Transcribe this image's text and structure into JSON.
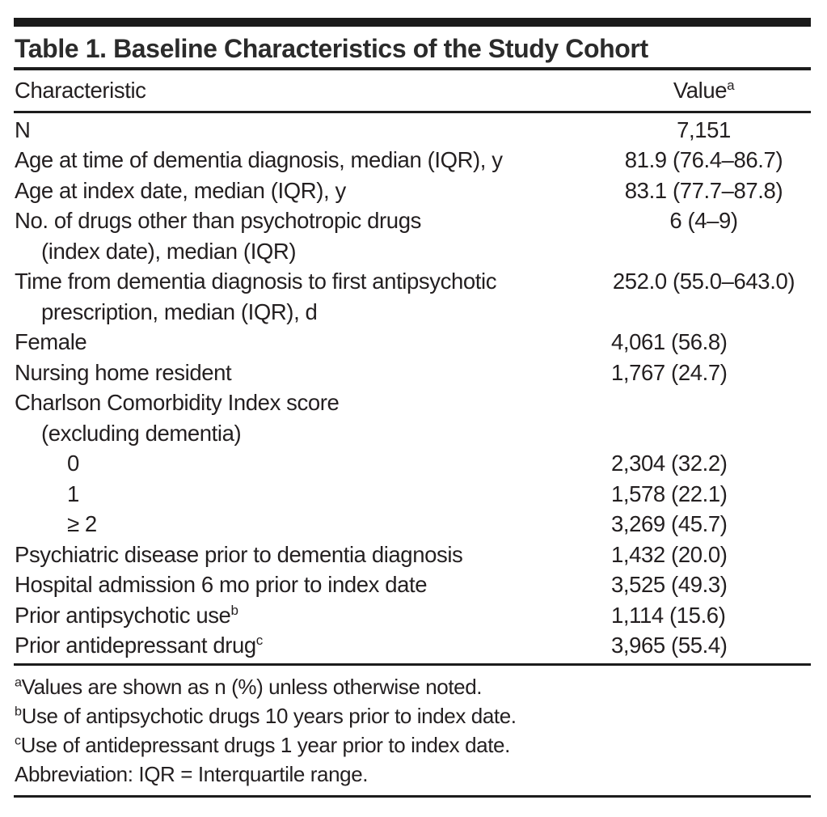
{
  "table": {
    "title": "Table 1. Baseline Characteristics of the Study Cohort",
    "columns": {
      "characteristic": "Characteristic",
      "value": "Value",
      "value_sup": "a"
    },
    "rows": [
      {
        "label": "N",
        "value": "7,151",
        "align": "center"
      },
      {
        "label": "Age at time of dementia diagnosis, median (IQR), y",
        "value": "81.9 (76.4–86.7)",
        "align": "center"
      },
      {
        "label": "Age at index date, median (IQR), y",
        "value": "83.1 (77.7–87.8)",
        "align": "center"
      },
      {
        "label": "No. of drugs other than psychotropic drugs",
        "label2": "(index date), median (IQR)",
        "value": "6 (4–9)",
        "align": "center"
      },
      {
        "label": "Time from dementia diagnosis to first antipsychotic",
        "label2": "prescription, median (IQR), d",
        "value": "252.0 (55.0–643.0)",
        "align": "center"
      },
      {
        "label": "Female",
        "value": "4,061 (56.8)",
        "align": "left"
      },
      {
        "label": "Nursing home resident",
        "value": "1,767 (24.7)",
        "align": "left"
      },
      {
        "label": "Charlson Comorbidity Index score",
        "label2": "(excluding dementia)",
        "value": "",
        "align": "left"
      },
      {
        "label": "0",
        "value": "2,304 (32.2)",
        "align": "left",
        "indent": 1
      },
      {
        "label": "1",
        "value": "1,578 (22.1)",
        "align": "left",
        "indent": 1
      },
      {
        "label": "≥ 2",
        "value": "3,269 (45.7)",
        "align": "left",
        "indent": 1
      },
      {
        "label": "Psychiatric disease prior to dementia diagnosis",
        "value": "1,432 (20.0)",
        "align": "left"
      },
      {
        "label": "Hospital admission 6 mo prior to index date",
        "value": "3,525 (49.3)",
        "align": "left"
      },
      {
        "label": "Prior antipsychotic use",
        "label_sup": "b",
        "value": "1,114 (15.6)",
        "align": "left"
      },
      {
        "label": "Prior antidepressant drug",
        "label_sup": "c",
        "value": "3,965 (55.4)",
        "align": "left"
      }
    ],
    "footnotes": [
      {
        "sup": "a",
        "text": "Values are shown as n (%) unless otherwise noted."
      },
      {
        "sup": "b",
        "text": "Use of antipsychotic drugs 10 years prior to index date."
      },
      {
        "sup": "c",
        "text": "Use of antidepressant drugs 1 year prior to index date."
      },
      {
        "sup": "",
        "text": "Abbreviation: IQR = Interquartile range."
      }
    ],
    "colors": {
      "text": "#231f20",
      "rule": "#1c1c1c",
      "background": "#ffffff"
    }
  }
}
